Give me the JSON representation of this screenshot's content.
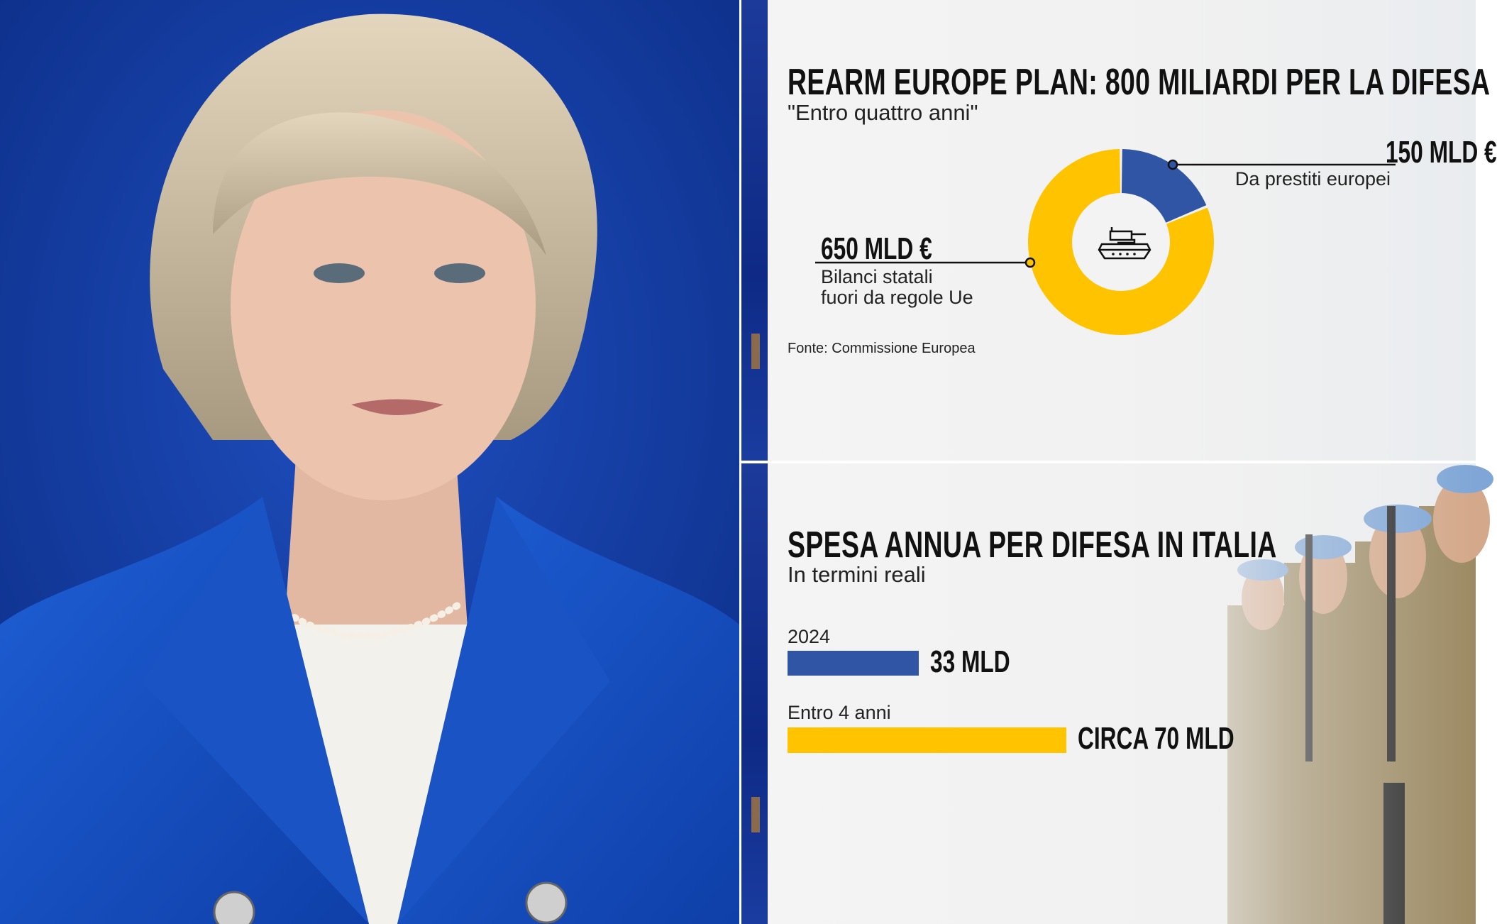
{
  "colors": {
    "blue": "#2F55A4",
    "yellow": "#FFC300",
    "photo_background": "#123a9c"
  },
  "photo": {
    "subject": "woman in blue blazer against blue background"
  },
  "top_panel": {
    "title": "REARM EUROPE PLAN: 800 MILIARDI PER LA DIFESA",
    "subtitle": "\"Entro quattro anni\"",
    "center_icon": "tank-icon",
    "labels": [
      {
        "value": "150 MLD €",
        "desc": "Da prestiti europei"
      },
      {
        "value": "650 MLD €",
        "desc_line1": "Bilanci statali",
        "desc_line2": "fuori da regole Ue"
      }
    ],
    "source": "Fonte: Commissione Europea"
  },
  "bottom_panel": {
    "title": "SPESA ANNUA PER DIFESA IN ITALIA",
    "subtitle": "In termini reali",
    "rows": [
      {
        "label": "2024",
        "value_label": "33 MLD"
      },
      {
        "label": "Entro 4 anni",
        "value_label": "CIRCA 70 MLD"
      }
    ]
  },
  "chart_data": [
    {
      "type": "pie",
      "variant": "donut",
      "title": "REARM EUROPE PLAN: 800 MILIARDI PER LA DIFESA",
      "subtitle": "\"Entro quattro anni\"",
      "unit": "MLD €",
      "slices": [
        {
          "label": "Da prestiti europei",
          "value": 150,
          "color": "#2F55A4"
        },
        {
          "label": "Bilanci statali fuori da regole Ue",
          "value": 650,
          "color": "#FFC300"
        }
      ]
    },
    {
      "type": "bar",
      "orientation": "horizontal",
      "title": "SPESA ANNUA PER DIFESA IN ITALIA",
      "subtitle": "In termini reali",
      "categories": [
        "2024",
        "Entro 4 anni"
      ],
      "values": [
        33,
        70
      ],
      "colors": [
        "#2F55A4",
        "#FFC300"
      ],
      "unit": "MLD"
    }
  ]
}
